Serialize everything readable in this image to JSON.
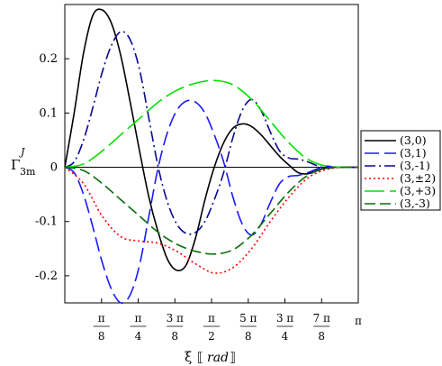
{
  "chart_data": {
    "type": "line",
    "title": "",
    "ylabel": {
      "base": "Γ",
      "sup": "J",
      "sub": "3m"
    },
    "xlabel": {
      "sym": "ξ",
      "unit": "rad"
    },
    "xlim": [
      0,
      3.14159
    ],
    "ylim": [
      -0.25,
      0.3
    ],
    "xticks": [
      {
        "value": 0.3927,
        "num": "π",
        "den": "8"
      },
      {
        "value": 0.7854,
        "num": "π",
        "den": "4"
      },
      {
        "value": 1.1781,
        "num": "3 π",
        "den": "8"
      },
      {
        "value": 1.5708,
        "num": "π",
        "den": "2"
      },
      {
        "value": 1.9635,
        "num": "5 π",
        "den": "8"
      },
      {
        "value": 2.3562,
        "num": "3 π",
        "den": "4"
      },
      {
        "value": 2.7489,
        "num": "7 π",
        "den": "8"
      },
      {
        "value": 3.14159,
        "num": "π",
        "den": ""
      }
    ],
    "yticks": [
      {
        "value": 0.2,
        "label": "0.2"
      },
      {
        "value": 0.1,
        "label": "0.1"
      },
      {
        "value": 0,
        "label": "0"
      },
      {
        "value": -0.1,
        "label": "-0.1"
      },
      {
        "value": -0.2,
        "label": "-0.2"
      }
    ],
    "legend_position": "right",
    "series": [
      {
        "name": "(3,0)",
        "color": "#000000",
        "dash": "",
        "x": [
          0,
          0.1,
          0.2,
          0.3,
          0.4,
          0.5,
          0.6,
          0.7,
          0.8,
          0.9,
          1.0,
          1.1,
          1.2,
          1.3,
          1.4,
          1.5,
          1.6,
          1.7,
          1.8,
          1.9,
          2.0,
          2.1,
          2.2,
          2.3,
          2.4,
          2.5,
          2.6,
          2.7,
          2.8,
          2.9,
          3.0,
          3.1416
        ],
        "y": [
          0,
          0.1,
          0.21,
          0.28,
          0.29,
          0.265,
          0.205,
          0.12,
          0.03,
          -0.055,
          -0.12,
          -0.17,
          -0.19,
          -0.18,
          -0.13,
          -0.06,
          0.0,
          0.045,
          0.072,
          0.08,
          0.075,
          0.06,
          0.04,
          0.02,
          0.004,
          -0.01,
          -0.012,
          -0.006,
          -0.001,
          0,
          0,
          0
        ]
      },
      {
        "name": "(3,1)",
        "color": "#1a1aff",
        "dash": "16 6",
        "x": [
          0,
          0.1,
          0.2,
          0.3,
          0.4,
          0.5,
          0.6,
          0.7,
          0.8,
          0.9,
          1.0,
          1.1,
          1.2,
          1.3,
          1.4,
          1.5,
          1.6,
          1.7,
          1.8,
          1.9,
          2.0,
          2.1,
          2.2,
          2.3,
          2.4,
          2.5,
          2.6,
          2.7,
          2.8,
          2.9,
          3.0,
          3.1416
        ],
        "y": [
          0,
          -0.01,
          -0.05,
          -0.11,
          -0.175,
          -0.225,
          -0.25,
          -0.235,
          -0.18,
          -0.09,
          0.0,
          0.065,
          0.105,
          0.122,
          0.12,
          0.1,
          0.06,
          0.01,
          -0.055,
          -0.105,
          -0.125,
          -0.105,
          -0.065,
          -0.03,
          -0.017,
          -0.015,
          -0.01,
          -0.003,
          0.002,
          0,
          0,
          0
        ]
      },
      {
        "name": "(3,-1)",
        "color": "#0a0a8c",
        "dash": "12 4 2 4",
        "x": [
          0,
          0.1,
          0.2,
          0.3,
          0.4,
          0.5,
          0.6,
          0.7,
          0.8,
          0.9,
          1.0,
          1.1,
          1.2,
          1.3,
          1.4,
          1.5,
          1.6,
          1.7,
          1.8,
          1.9,
          2.0,
          2.1,
          2.2,
          2.3,
          2.4,
          2.5,
          2.6,
          2.7,
          2.8,
          2.9,
          3.0,
          3.1416
        ],
        "y": [
          0,
          0.01,
          0.05,
          0.11,
          0.175,
          0.225,
          0.25,
          0.235,
          0.18,
          0.09,
          0.0,
          -0.065,
          -0.105,
          -0.122,
          -0.12,
          -0.1,
          -0.06,
          -0.01,
          0.055,
          0.105,
          0.125,
          0.105,
          0.065,
          0.03,
          0.017,
          0.015,
          0.01,
          0.003,
          -0.002,
          0,
          0,
          0
        ]
      },
      {
        "name": "(3,±2)",
        "color": "#ff0000",
        "dash": "2 3",
        "x": [
          0,
          0.2,
          0.4,
          0.6,
          0.8,
          1.0,
          1.2,
          1.4,
          1.6,
          1.8,
          2.0,
          2.2,
          2.4,
          2.6,
          2.8,
          3.0,
          3.1416
        ],
        "y": [
          0,
          -0.03,
          -0.09,
          -0.128,
          -0.136,
          -0.14,
          -0.155,
          -0.178,
          -0.195,
          -0.185,
          -0.15,
          -0.1,
          -0.055,
          -0.02,
          -0.004,
          0,
          0
        ]
      },
      {
        "name": "(3,+3)",
        "color": "#00e000",
        "dash": "22 6",
        "x": [
          0,
          0.2,
          0.4,
          0.6,
          0.8,
          1.0,
          1.2,
          1.4,
          1.6,
          1.8,
          2.0,
          2.2,
          2.4,
          2.6,
          2.8,
          3.0,
          3.1416
        ],
        "y": [
          0,
          0.006,
          0.03,
          0.06,
          0.09,
          0.12,
          0.142,
          0.155,
          0.16,
          0.152,
          0.125,
          0.085,
          0.045,
          0.015,
          0.002,
          0,
          0
        ]
      },
      {
        "name": "(3,-3)",
        "color": "#0a6e0a",
        "dash": "12 5",
        "x": [
          0,
          0.2,
          0.4,
          0.6,
          0.8,
          1.0,
          1.2,
          1.4,
          1.6,
          1.8,
          2.0,
          2.2,
          2.4,
          2.6,
          2.8,
          3.0,
          3.1416
        ],
        "y": [
          0,
          -0.006,
          -0.03,
          -0.06,
          -0.09,
          -0.12,
          -0.142,
          -0.155,
          -0.16,
          -0.152,
          -0.125,
          -0.085,
          -0.045,
          -0.015,
          -0.002,
          0,
          0
        ]
      }
    ]
  }
}
